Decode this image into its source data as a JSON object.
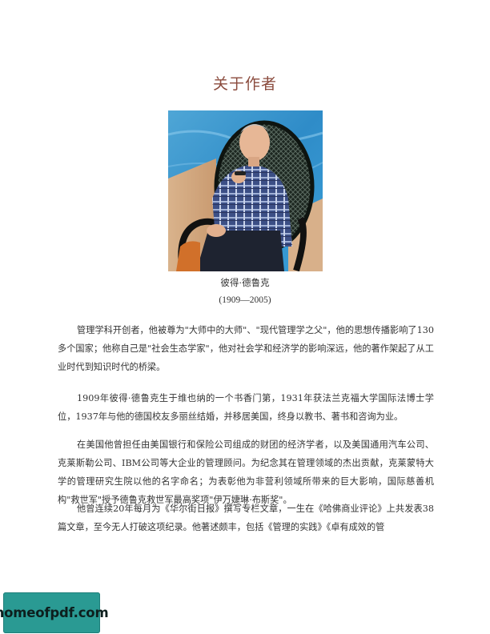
{
  "page": {
    "title": "关于作者"
  },
  "portrait": {
    "name": "彼得·德鲁克",
    "years": "(1909—2005)"
  },
  "paragraphs": [
    "管理学科开创者，他被尊为\"大师中的大师\"、\"现代管理学之父\"，他的思想传播影响了130多个国家；他称自己是\"社会生态学家\"，他对社会学和经济学的影响深远，他的著作架起了从工业时代到知识时代的桥梁。",
    "1909年彼得·德鲁克生于维也纳的一个书香门第，1931年获法兰克福大学国际法博士学位，1937年与他的德国校友多丽丝结婚，并移居美国，终身以教书、著书和咨询为业。",
    "在美国他曾担任由美国银行和保险公司组成的财团的经济学者，以及美国通用汽车公司、克莱斯勒公司、IBM公司等大企业的管理顾问。为纪念其在管理领域的杰出贡献，克莱蒙特大学的管理研究生院以他的名字命名；为表彰他为非营利领域所带来的巨大影响，国际慈善机构\"救世军\"授予德鲁克救世军最高奖项\"伊万婕琳·布斯奖\"。",
    "他曾连续20年每月为《华尔街日报》撰写专栏文章，一生在《哈佛商业评论》上共发表38篇文章，至今无人打破这项纪录。他著述颇丰，包括《管理的实践》《卓有成效的管"
  ],
  "watermark": {
    "text": "homeofpdf.com"
  },
  "colors": {
    "title": "#8a4a3c",
    "text": "#333333",
    "watermark_bg": "#2a9a93"
  }
}
